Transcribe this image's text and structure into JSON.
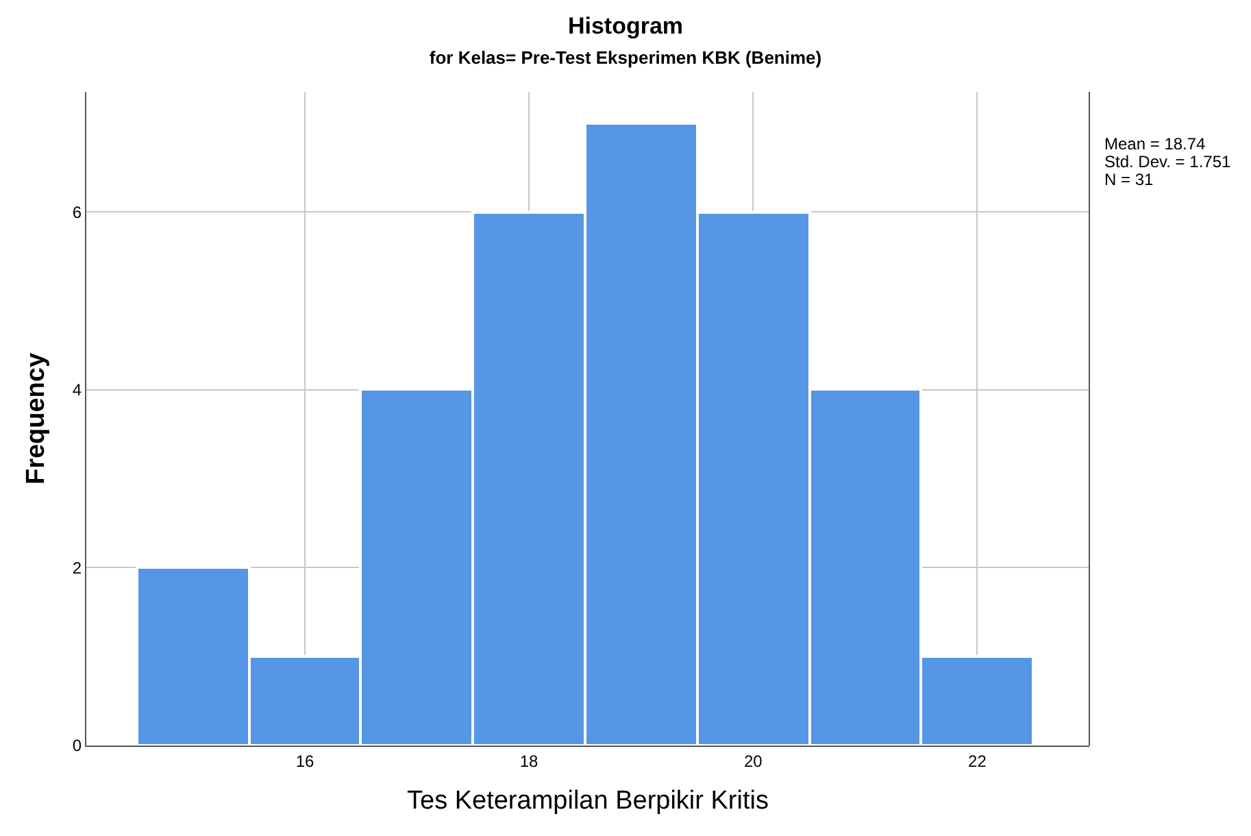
{
  "chart_data": {
    "type": "histogram",
    "title": "Histogram",
    "subtitle": "for Kelas= Pre-Test Eksperimen KBK (Benime)",
    "xlabel": "Tes Keterampilan Berpikir Kritis",
    "ylabel": "Frequency",
    "bins": [
      14.5,
      15.5,
      16.5,
      17.5,
      18.5,
      19.5,
      20.5,
      21.5,
      22.5
    ],
    "values": [
      2,
      1,
      4,
      6,
      7,
      6,
      4,
      1
    ],
    "color": "#5596e6",
    "xlim": [
      14.05,
      23.0
    ],
    "xticks": [
      16,
      18,
      20,
      22
    ],
    "ylim": [
      0,
      7.35
    ],
    "yticks": [
      0,
      2,
      4,
      6
    ],
    "grid": true,
    "legend": false,
    "annotations": [
      "Mean = 18.74",
      "Std. Dev. = 1.751",
      "N = 31"
    ]
  }
}
